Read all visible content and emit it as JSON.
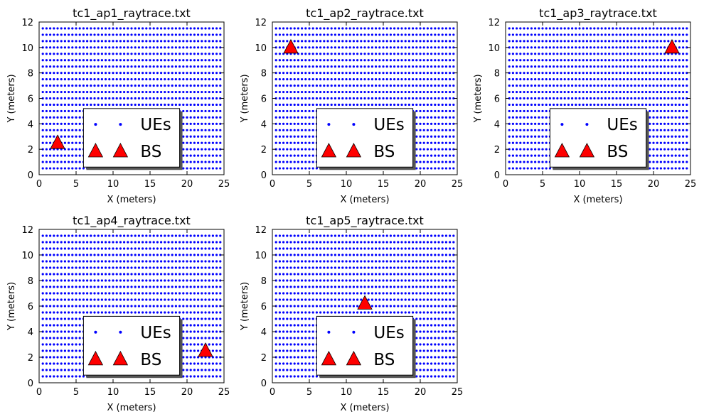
{
  "chart_data": [
    {
      "type": "scatter",
      "title": "tc1_ap1_raytrace.txt",
      "xlabel": "X (meters)",
      "ylabel": "Y (meters)",
      "xlim": [
        0,
        25
      ],
      "ylim": [
        0,
        12
      ],
      "xticks": [
        0,
        5,
        10,
        15,
        20,
        25
      ],
      "yticks": [
        0,
        2,
        4,
        6,
        8,
        10,
        12
      ],
      "grid": false,
      "legend_position": "lower-center",
      "series": [
        {
          "name": "UEs",
          "marker": "dot",
          "color": "#0000ff",
          "grid_points": {
            "x_start": 0.5,
            "x_step": 0.5,
            "x_count": 49,
            "y_start": 0.5,
            "y_step": 0.5,
            "y_count": 23
          }
        },
        {
          "name": "BS",
          "marker": "triangle",
          "color": "#ff0000",
          "points": [
            [
              2.5,
              2.5
            ]
          ]
        }
      ]
    },
    {
      "type": "scatter",
      "title": "tc1_ap2_raytrace.txt",
      "xlabel": "X (meters)",
      "ylabel": "Y (meters)",
      "xlim": [
        0,
        25
      ],
      "ylim": [
        0,
        12
      ],
      "xticks": [
        0,
        5,
        10,
        15,
        20,
        25
      ],
      "yticks": [
        0,
        2,
        4,
        6,
        8,
        10,
        12
      ],
      "grid": false,
      "legend_position": "lower-center",
      "series": [
        {
          "name": "UEs",
          "marker": "dot",
          "color": "#0000ff",
          "grid_points": {
            "x_start": 0.5,
            "x_step": 0.5,
            "x_count": 49,
            "y_start": 0.5,
            "y_step": 0.5,
            "y_count": 23
          }
        },
        {
          "name": "BS",
          "marker": "triangle",
          "color": "#ff0000",
          "points": [
            [
              2.5,
              10.0
            ]
          ]
        }
      ]
    },
    {
      "type": "scatter",
      "title": "tc1_ap3_raytrace.txt",
      "xlabel": "X (meters)",
      "ylabel": "Y (meters)",
      "xlim": [
        0,
        25
      ],
      "ylim": [
        0,
        12
      ],
      "xticks": [
        0,
        5,
        10,
        15,
        20,
        25
      ],
      "yticks": [
        0,
        2,
        4,
        6,
        8,
        10,
        12
      ],
      "grid": false,
      "legend_position": "lower-center",
      "series": [
        {
          "name": "UEs",
          "marker": "dot",
          "color": "#0000ff",
          "grid_points": {
            "x_start": 0.5,
            "x_step": 0.5,
            "x_count": 49,
            "y_start": 0.5,
            "y_step": 0.5,
            "y_count": 23
          }
        },
        {
          "name": "BS",
          "marker": "triangle",
          "color": "#ff0000",
          "points": [
            [
              22.5,
              10.0
            ]
          ]
        }
      ]
    },
    {
      "type": "scatter",
      "title": "tc1_ap4_raytrace.txt",
      "xlabel": "X (meters)",
      "ylabel": "Y (meters)",
      "xlim": [
        0,
        25
      ],
      "ylim": [
        0,
        12
      ],
      "xticks": [
        0,
        5,
        10,
        15,
        20,
        25
      ],
      "yticks": [
        0,
        2,
        4,
        6,
        8,
        10,
        12
      ],
      "grid": false,
      "legend_position": "lower-center",
      "series": [
        {
          "name": "UEs",
          "marker": "dot",
          "color": "#0000ff",
          "grid_points": {
            "x_start": 0.5,
            "x_step": 0.5,
            "x_count": 49,
            "y_start": 0.5,
            "y_step": 0.5,
            "y_count": 23
          }
        },
        {
          "name": "BS",
          "marker": "triangle",
          "color": "#ff0000",
          "points": [
            [
              22.5,
              2.5
            ]
          ]
        }
      ]
    },
    {
      "type": "scatter",
      "title": "tc1_ap5_raytrace.txt",
      "xlabel": "X (meters)",
      "ylabel": "Y (meters)",
      "xlim": [
        0,
        25
      ],
      "ylim": [
        0,
        12
      ],
      "xticks": [
        0,
        5,
        10,
        15,
        20,
        25
      ],
      "yticks": [
        0,
        2,
        4,
        6,
        8,
        10,
        12
      ],
      "grid": false,
      "legend_position": "lower-center",
      "series": [
        {
          "name": "UEs",
          "marker": "dot",
          "color": "#0000ff",
          "grid_points": {
            "x_start": 0.5,
            "x_step": 0.5,
            "x_count": 49,
            "y_start": 0.5,
            "y_step": 0.5,
            "y_count": 23
          }
        },
        {
          "name": "BS",
          "marker": "triangle",
          "color": "#ff0000",
          "points": [
            [
              12.5,
              6.2
            ]
          ]
        }
      ]
    }
  ]
}
